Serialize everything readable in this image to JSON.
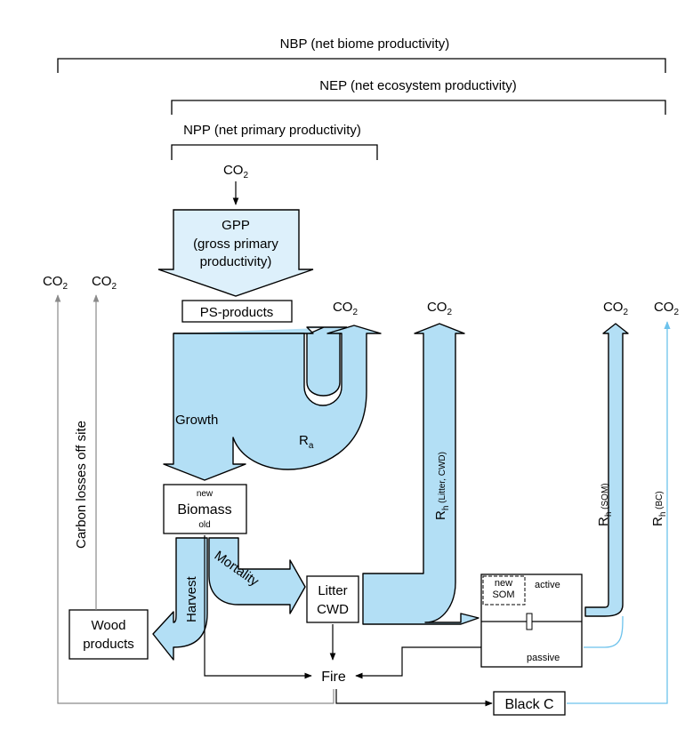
{
  "brackets": {
    "nbp": "NBP (net biome productivity)",
    "nep": "NEP (net ecosystem productivity)",
    "npp": "NPP (net primary productivity)"
  },
  "co2": {
    "base": "CO",
    "sub": "2"
  },
  "gpp": {
    "line1": "GPP",
    "line2": "(gross primary",
    "line3": "productivity)"
  },
  "ps_products": "PS-products",
  "growth": "Growth",
  "ra": {
    "base": "R",
    "sub": "a"
  },
  "biomass": {
    "new": "new",
    "label": "Biomass",
    "old": "old"
  },
  "harvest": "Harvest",
  "mortality": "Mortality",
  "litter": {
    "line1": "Litter",
    "line2": "CWD"
  },
  "rh_litter": {
    "base": "R",
    "sub": "h",
    "qual": " (Litter, CWD)"
  },
  "rh_som": {
    "base": "R",
    "sub": "h",
    "qual": " (SOM)"
  },
  "rh_bc": {
    "base": "R",
    "sub": "h",
    "qual": " (BC)"
  },
  "som": {
    "new1": "new",
    "new2": "SOM",
    "active": "active",
    "passive": "passive"
  },
  "wood": {
    "line1": "Wood",
    "line2": "products"
  },
  "fire": "Fire",
  "black_c": "Black C",
  "carbon_losses": "Carbon losses off site",
  "colors": {
    "flow_fill": "#b3dff5",
    "gpp_fill": "#ddf0fb",
    "grey_line": "#8a8a8a",
    "blue_line": "#6cc2ec"
  }
}
